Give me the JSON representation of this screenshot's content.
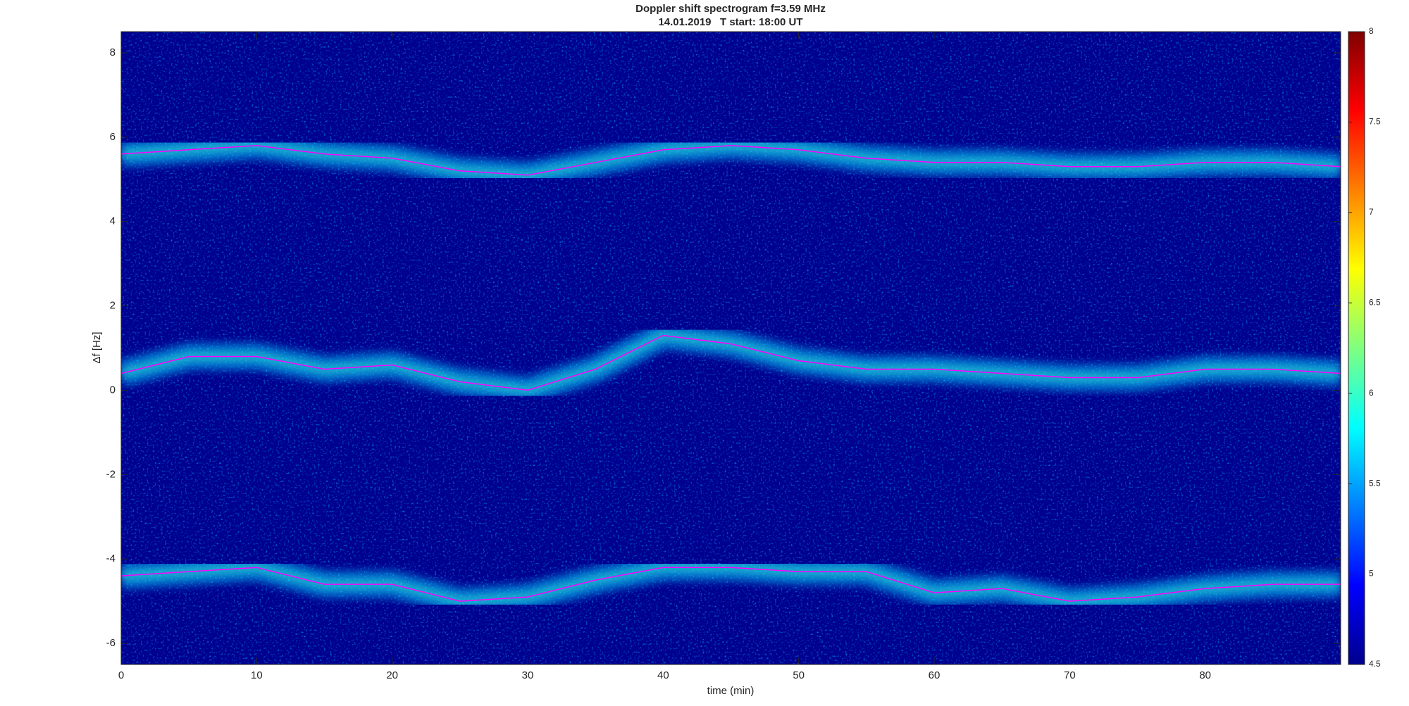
{
  "chart_data": {
    "type": "spectrogram",
    "title": "Doppler shift spectrogram f=3.59 MHz",
    "subtitle": "14.01.2019   T start: 18:00 UT",
    "xlabel": "time (min)",
    "ylabel": "Δf [Hz]",
    "xlim": [
      0,
      90
    ],
    "xticks": [
      0,
      10,
      20,
      30,
      40,
      50,
      60,
      70,
      80
    ],
    "ylim": [
      -6.5,
      8.5
    ],
    "yticks": [
      -6,
      -4,
      -2,
      0,
      2,
      4,
      6,
      8
    ],
    "clim": [
      4.5,
      8
    ],
    "cticks": [
      4.5,
      5,
      5.5,
      6,
      6.5,
      7,
      7.5,
      8
    ],
    "x": [
      0,
      5,
      10,
      15,
      20,
      25,
      30,
      35,
      40,
      45,
      50,
      55,
      60,
      65,
      70,
      75,
      80,
      85,
      90
    ],
    "series": [
      {
        "color": "#ff00ff",
        "values": [
          5.6,
          5.7,
          5.8,
          5.6,
          5.5,
          5.2,
          5.1,
          5.4,
          5.7,
          5.8,
          5.7,
          5.5,
          5.4,
          5.4,
          5.3,
          5.3,
          5.4,
          5.4,
          5.3
        ]
      },
      {
        "color": "#ff00ff",
        "values": [
          0.4,
          0.8,
          0.8,
          0.5,
          0.6,
          0.2,
          0.0,
          0.5,
          1.3,
          1.1,
          0.7,
          0.5,
          0.5,
          0.4,
          0.3,
          0.3,
          0.5,
          0.5,
          0.4
        ]
      },
      {
        "color": "#ff00ff",
        "values": [
          -4.4,
          -4.3,
          -4.2,
          -4.6,
          -4.6,
          -5.0,
          -4.9,
          -4.5,
          -4.2,
          -4.2,
          -4.3,
          -4.3,
          -4.8,
          -4.7,
          -5.0,
          -4.9,
          -4.7,
          -4.6,
          -4.6
        ]
      }
    ]
  }
}
